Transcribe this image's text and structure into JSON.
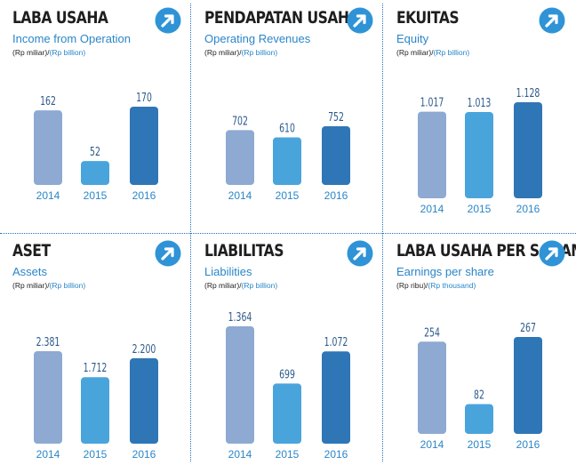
{
  "colors": {
    "bar_2014": "#8ea9d2",
    "bar_2015": "#4aa4dc",
    "bar_2016": "#2f76b6",
    "accent": "#2a86c9",
    "arrow_icon": "#2f93d6"
  },
  "panels": [
    {
      "title": "LABA USAHA",
      "subtitle": "Income from Operation",
      "unit_id": "(Rp miliar)/",
      "unit_en": "(Rp billion)",
      "icon": "arrow-up-right-icon"
    },
    {
      "title": "PENDAPATAN USAHA",
      "subtitle": "Operating Revenues",
      "unit_id": "(Rp miliar)/",
      "unit_en": "(Rp billion)",
      "icon": "arrow-up-right-icon"
    },
    {
      "title": "EKUITAS",
      "subtitle": "Equity",
      "unit_id": "(Rp miliar)/",
      "unit_en": "(Rp billion)",
      "icon": "arrow-up-right-icon"
    },
    {
      "title": "ASET",
      "subtitle": "Assets",
      "unit_id": "(Rp miliar)/",
      "unit_en": "(Rp billion)",
      "icon": "arrow-up-right-icon"
    },
    {
      "title": "LIABILITAS",
      "subtitle": "Liabilities",
      "unit_id": "(Rp miliar)/",
      "unit_en": "(Rp billion)",
      "icon": "arrow-up-right-icon"
    },
    {
      "title": "LABA USAHA PER SAHAM",
      "subtitle": "Earnings per share",
      "unit_id": "(Rp ribu)/",
      "unit_en": "(Rp thousand)",
      "icon": "arrow-up-right-icon"
    }
  ],
  "chart_data": [
    {
      "type": "bar",
      "title": "LABA USAHA",
      "subtitle": "Income from Operation",
      "categories": [
        "2014",
        "2015",
        "2016"
      ],
      "values": [
        162,
        52,
        170
      ],
      "labels": [
        "162",
        "52",
        "170"
      ]
    },
    {
      "type": "bar",
      "title": "PENDAPATAN USAHA",
      "subtitle": "Operating Revenues",
      "categories": [
        "2014",
        "2015",
        "2016"
      ],
      "values": [
        702,
        610,
        752
      ],
      "labels": [
        "702",
        "610",
        "752"
      ]
    },
    {
      "type": "bar",
      "title": "EKUITAS",
      "subtitle": "Equity",
      "categories": [
        "2014",
        "2015",
        "2016"
      ],
      "values": [
        1017,
        1013,
        1128
      ],
      "labels": [
        "1.017",
        "1.013",
        "1.128"
      ]
    },
    {
      "type": "bar",
      "title": "ASET",
      "subtitle": "Assets",
      "categories": [
        "2014",
        "2015",
        "2016"
      ],
      "values": [
        2381,
        1712,
        2200
      ],
      "labels": [
        "2.381",
        "1.712",
        "2.200"
      ]
    },
    {
      "type": "bar",
      "title": "LIABILITAS",
      "subtitle": "Liabilities",
      "categories": [
        "2014",
        "2015",
        "2016"
      ],
      "values": [
        1364,
        699,
        1072
      ],
      "labels": [
        "1.364",
        "699",
        "1.072"
      ]
    },
    {
      "type": "bar",
      "title": "LABA USAHA PER SAHAM",
      "subtitle": "Earnings per share",
      "categories": [
        "2014",
        "2015",
        "2016"
      ],
      "values": [
        254,
        82,
        267
      ],
      "labels": [
        "254",
        "82",
        "267"
      ]
    }
  ]
}
